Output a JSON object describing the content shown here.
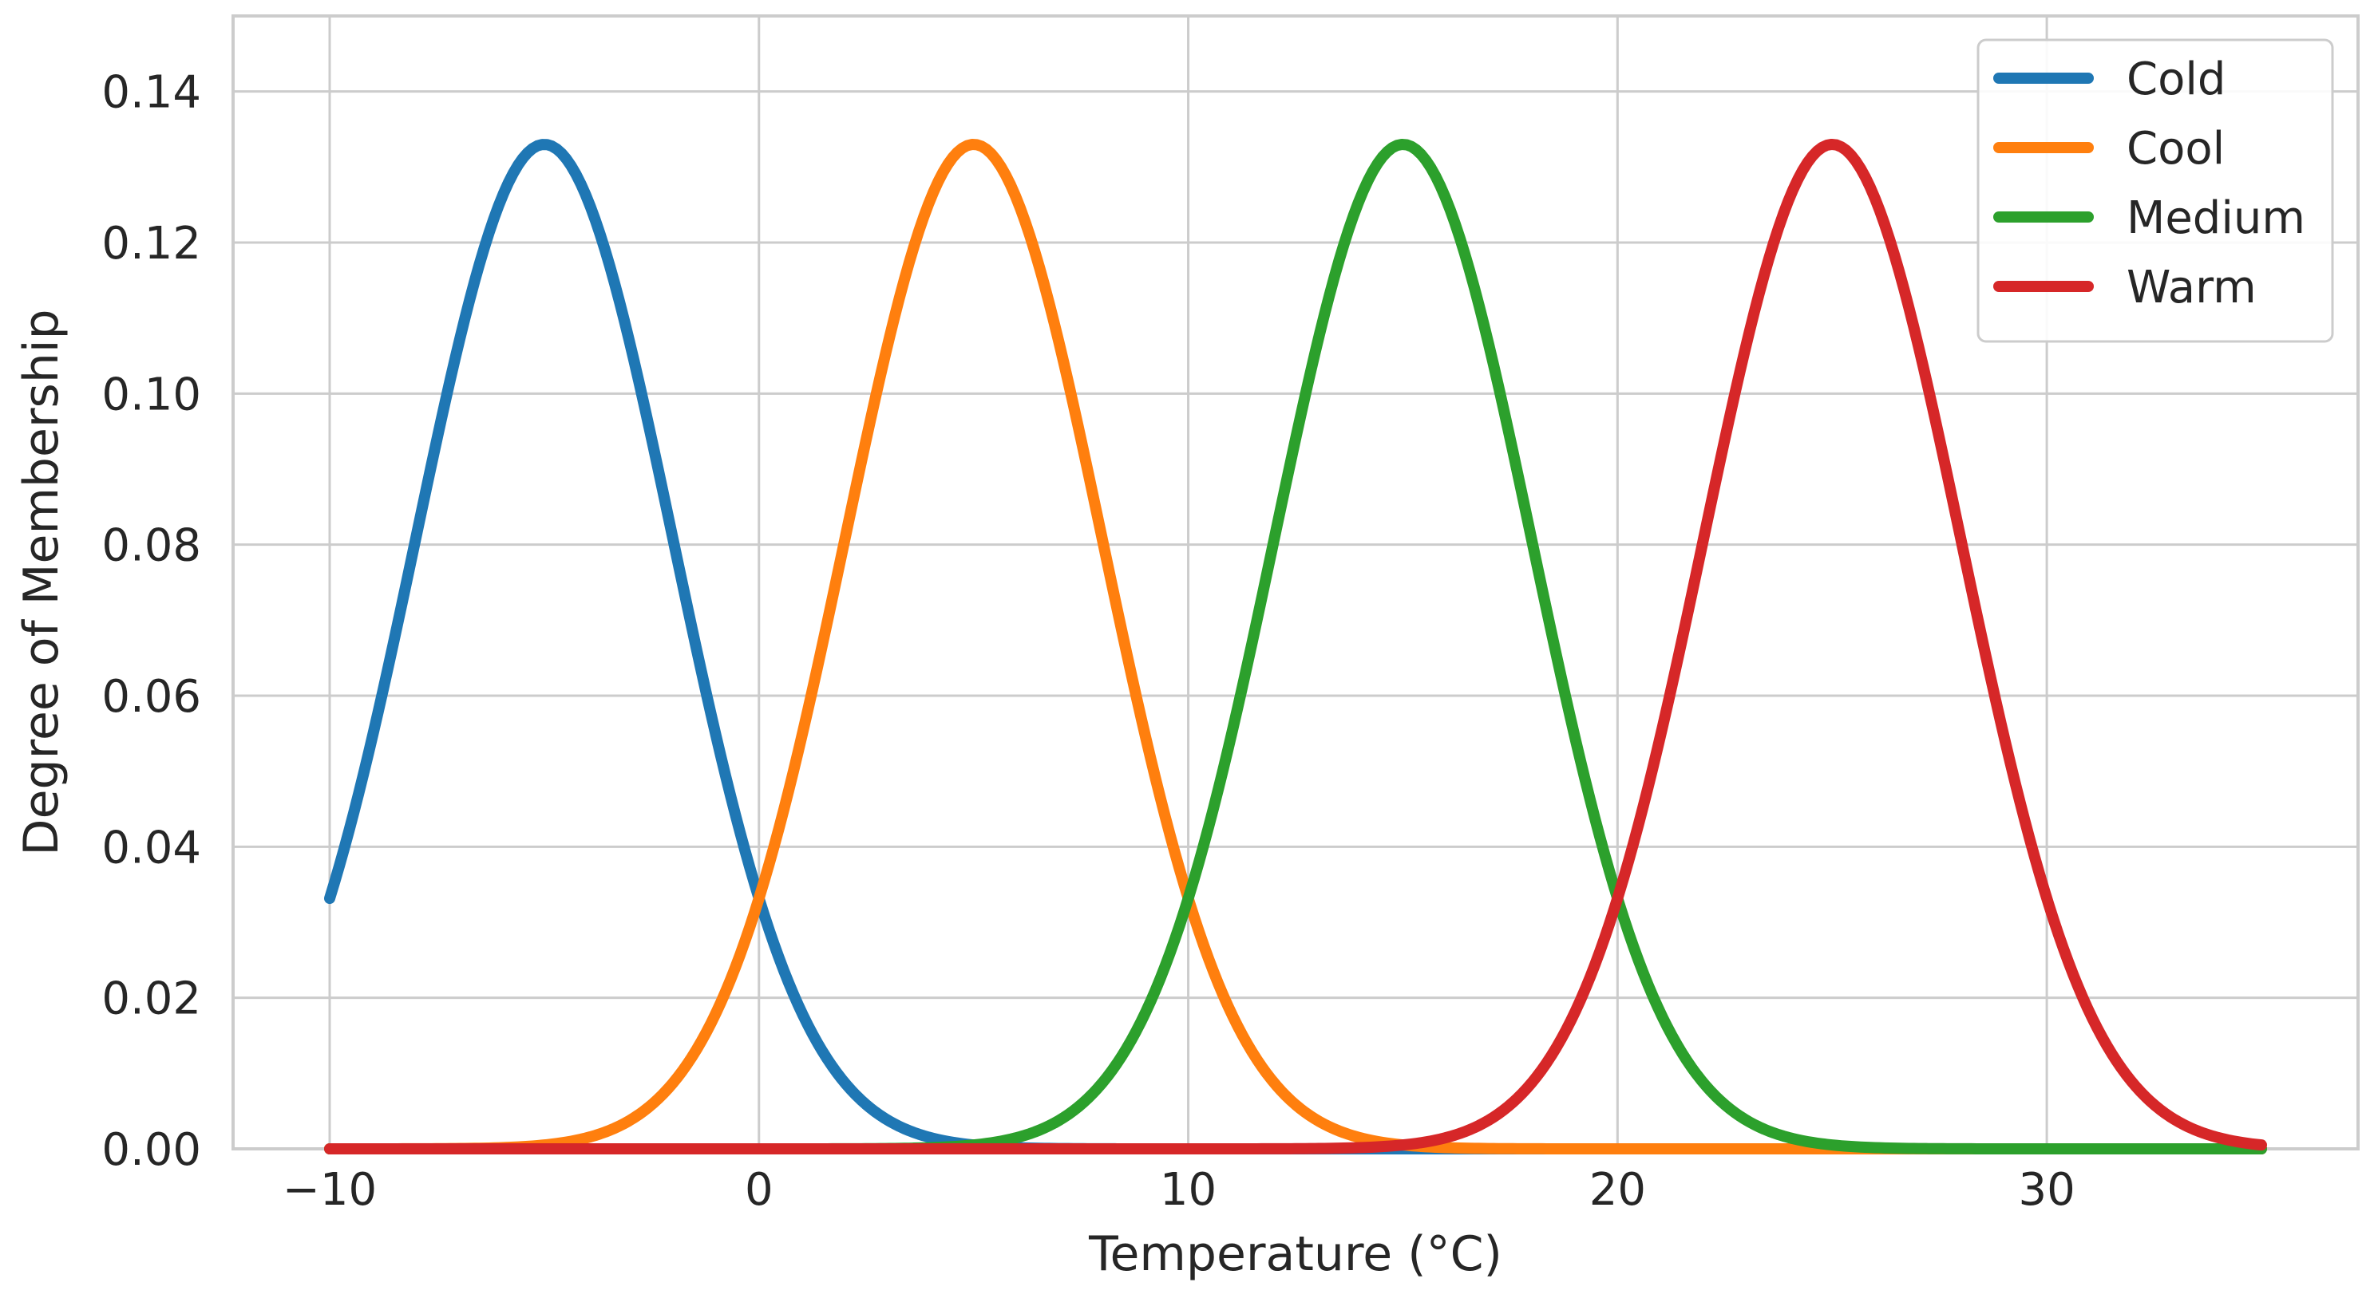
{
  "chart_data": {
    "type": "line",
    "title": "",
    "xlabel": "Temperature (°C)",
    "ylabel": "Degree of Membership",
    "xlim": [
      -12.25,
      37.25
    ],
    "ylim": [
      0,
      0.15
    ],
    "xticks": [
      -10,
      0,
      10,
      20,
      30
    ],
    "xtick_labels": [
      "−10",
      "0",
      "10",
      "20",
      "30"
    ],
    "yticks": [
      0.0,
      0.02,
      0.04,
      0.06,
      0.08,
      0.1,
      0.12,
      0.14
    ],
    "ytick_labels": [
      "0.00",
      "0.02",
      "0.04",
      "0.06",
      "0.08",
      "0.10",
      "0.12",
      "0.14"
    ],
    "grid": true,
    "legend_position": "top-right",
    "x_range": [
      -10,
      35
    ],
    "series": [
      {
        "name": "Cold",
        "color": "#1f77b4",
        "distribution": "gaussian",
        "mean": -5,
        "std": 3,
        "peak": 0.133
      },
      {
        "name": "Cool",
        "color": "#ff7f0e",
        "distribution": "gaussian",
        "mean": 5,
        "std": 3,
        "peak": 0.133
      },
      {
        "name": "Medium",
        "color": "#2ca02c",
        "distribution": "gaussian",
        "mean": 15,
        "std": 3,
        "peak": 0.133
      },
      {
        "name": "Warm",
        "color": "#d62728",
        "distribution": "gaussian",
        "mean": 25,
        "std": 3,
        "peak": 0.133
      }
    ]
  }
}
